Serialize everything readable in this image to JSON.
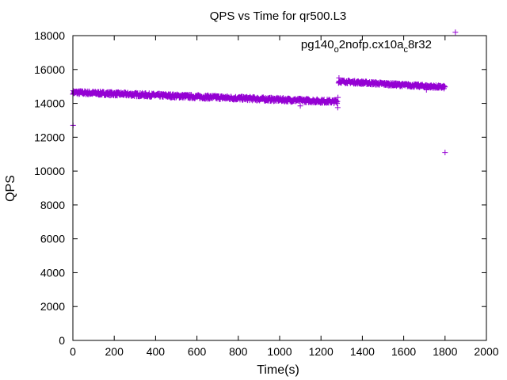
{
  "chart_data": {
    "type": "scatter",
    "title": "QPS vs Time for qr500.L3",
    "xlabel": "Time(s)",
    "ylabel": "QPS",
    "xlim": [
      0,
      2000
    ],
    "ylim": [
      0,
      18000
    ],
    "xticks": [
      0,
      200,
      400,
      600,
      800,
      1000,
      1200,
      1400,
      1600,
      1800,
      2000
    ],
    "yticks": [
      0,
      2000,
      4000,
      6000,
      8000,
      10000,
      12000,
      14000,
      16000,
      18000
    ],
    "grid": false,
    "legend_position": "top-right",
    "marker": "+",
    "series": [
      {
        "name": "pg140_o2nofp.cx10a_c8r32",
        "legend_base": "pg140",
        "legend_sub1": "o",
        "legend_mid": "2nofp.cx10a",
        "legend_sub2": "c",
        "legend_end": "8r32",
        "color": "#9400d3",
        "segments": [
          {
            "x_start": 0,
            "x_end": 1280,
            "y_start": 14650,
            "y_end": 14100,
            "noise": 110,
            "step": 1.5
          },
          {
            "x_start": 1285,
            "x_end": 1800,
            "y_start": 15300,
            "y_end": 14950,
            "noise": 90,
            "step": 1.5
          }
        ],
        "points": [
          [
            1,
            12700
          ],
          [
            1281,
            13750
          ],
          [
            1282,
            14350
          ],
          [
            1100,
            13850
          ],
          [
            1710,
            14800
          ],
          [
            1800,
            11100
          ],
          [
            1285,
            15200
          ],
          [
            1287,
            15500
          ]
        ],
        "legend_marker_point": [
          1850,
          18200
        ]
      }
    ]
  }
}
